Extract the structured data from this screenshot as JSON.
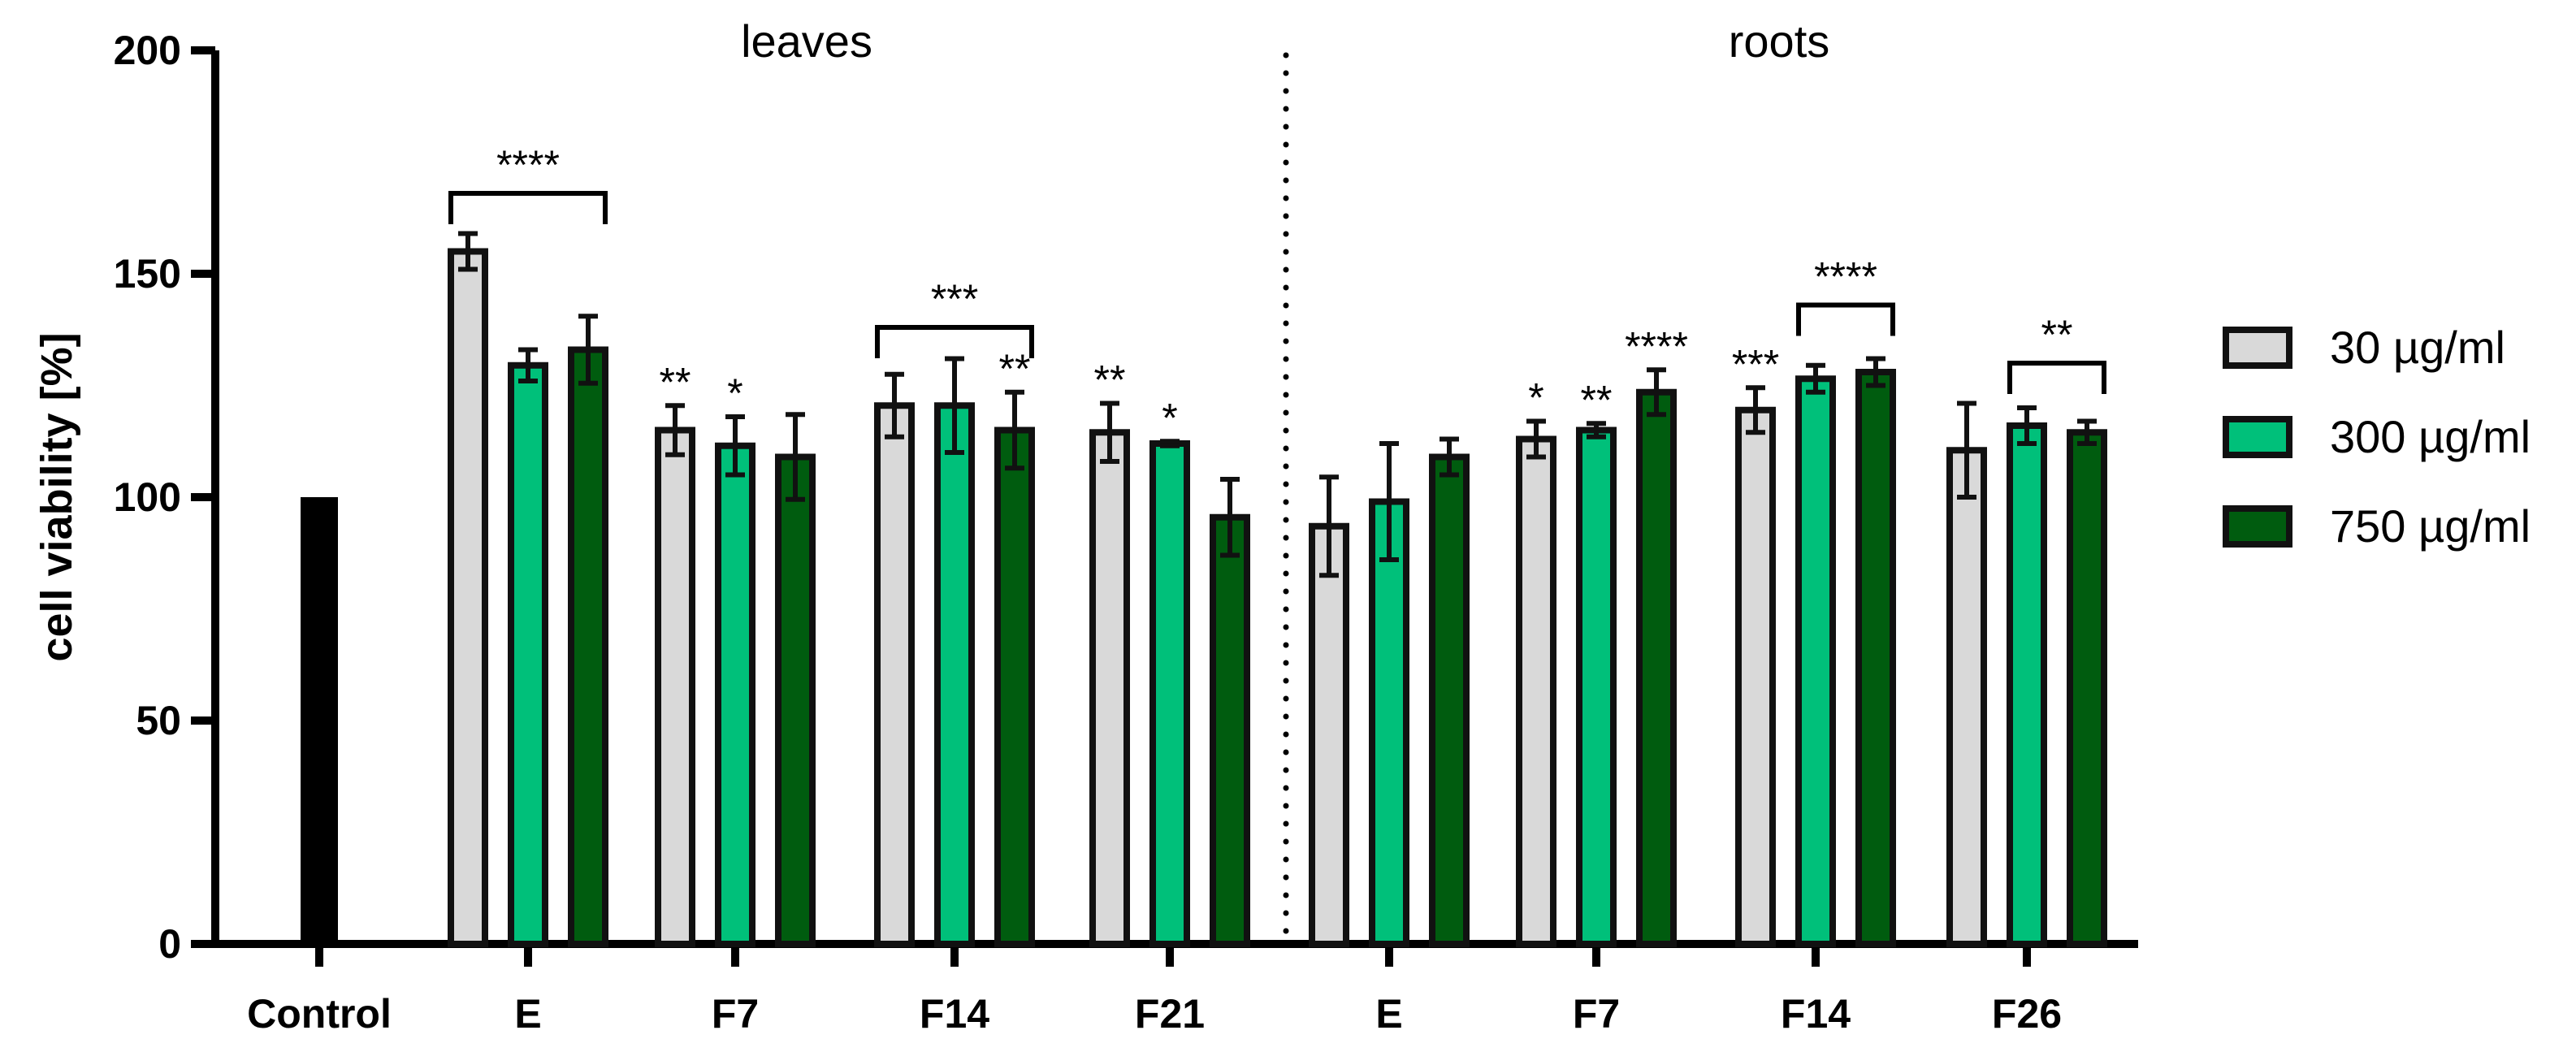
{
  "chart_data": {
    "type": "bar",
    "title": "",
    "xlabel": "",
    "ylabel": "cell viability [%]",
    "ylim": [
      0,
      200
    ],
    "yticks": [
      0,
      50,
      100,
      150,
      200
    ],
    "grid": false,
    "legend_position": "right",
    "groups": [
      "leaves",
      "roots"
    ],
    "control": {
      "label": "Control",
      "value": 100
    },
    "series": [
      {
        "name": "30 µg/ml",
        "color": "#d9d9d9"
      },
      {
        "name": "300 µg/ml",
        "color": "#00c07a"
      },
      {
        "name": "750 µg/ml",
        "color": "#005c0f"
      }
    ],
    "categories": [
      {
        "label": "E",
        "group": "leaves",
        "values": [
          155,
          129.5,
          133
        ],
        "errors": [
          4,
          3.5,
          7.5
        ],
        "significance": []
      },
      {
        "label": "F7",
        "group": "leaves",
        "values": [
          115,
          111.5,
          109
        ],
        "errors": [
          5.5,
          6.5,
          9.5
        ],
        "significance": [
          "**",
          "*",
          ""
        ]
      },
      {
        "label": "F14",
        "group": "leaves",
        "values": [
          120.5,
          120.5,
          115
        ],
        "errors": [
          7,
          10.5,
          8.5
        ],
        "significance": [
          "",
          "",
          "**"
        ]
      },
      {
        "label": "F21",
        "group": "leaves",
        "values": [
          114.5,
          112,
          95.5
        ],
        "errors": [
          6.5,
          0.5,
          8.5
        ],
        "significance": [
          "**",
          "*",
          ""
        ]
      },
      {
        "label": "E",
        "group": "roots",
        "values": [
          93.5,
          99,
          109
        ],
        "errors": [
          11,
          13,
          4
        ],
        "significance": []
      },
      {
        "label": "F7",
        "group": "roots",
        "values": [
          113,
          115,
          123.5
        ],
        "errors": [
          4,
          1.5,
          5
        ],
        "significance": [
          "*",
          "**",
          "****"
        ]
      },
      {
        "label": "F14",
        "group": "roots",
        "values": [
          119.5,
          126.5,
          128
        ],
        "errors": [
          5,
          3,
          3
        ],
        "significance": [
          "***",
          "",
          ""
        ]
      },
      {
        "label": "F26",
        "group": "roots",
        "values": [
          110.5,
          116,
          114.5
        ],
        "errors": [
          10.5,
          4,
          2.5
        ],
        "significance": []
      }
    ],
    "brackets": [
      {
        "category_index": 0,
        "from_series": 0,
        "to_series": 2,
        "label": "****",
        "level": 168
      },
      {
        "category_index": 2,
        "from_series": 0,
        "to_series": 2,
        "label": "***",
        "level": 138
      },
      {
        "category_index": 6,
        "from_series": 1,
        "to_series": 2,
        "label": "****",
        "level": 143
      },
      {
        "category_index": 7,
        "from_series": 1,
        "to_series": 2,
        "label": "**",
        "level": 130
      }
    ]
  }
}
